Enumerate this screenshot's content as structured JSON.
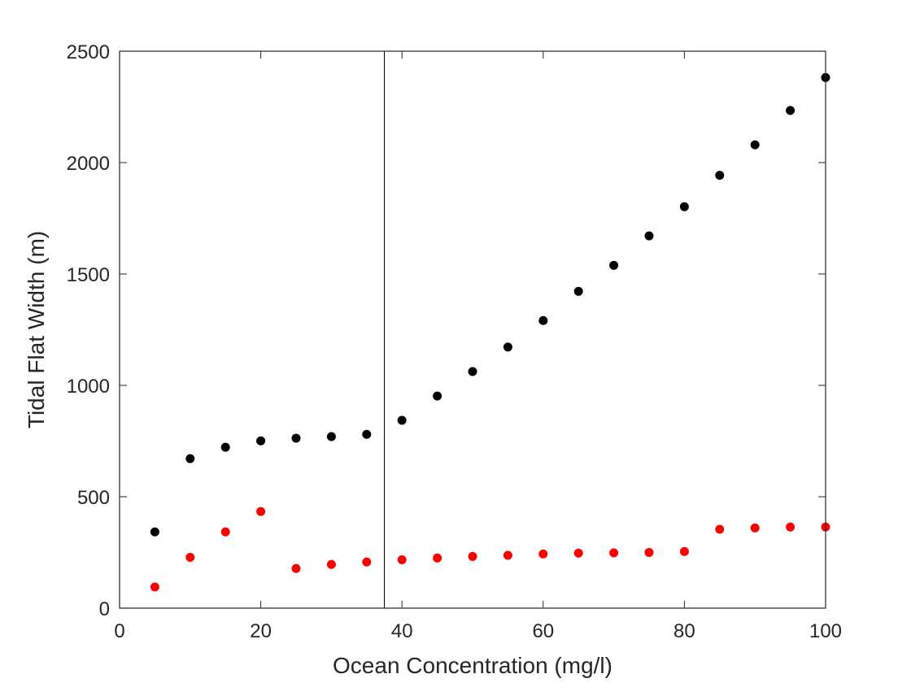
{
  "chart_data": {
    "type": "scatter",
    "title": "",
    "xlabel": "Ocean Concentration (mg/l)",
    "ylabel": "Tidal Flat Width (m)",
    "xlim": [
      0,
      100
    ],
    "ylim": [
      0,
      2500
    ],
    "xticks": [
      0,
      20,
      40,
      60,
      80,
      100
    ],
    "yticks": [
      0,
      500,
      1000,
      1500,
      2000,
      2500
    ],
    "grid": false,
    "legend": "none",
    "vertical_line_x": 37.5,
    "series": [
      {
        "color": "#000000",
        "x": [
          5,
          10,
          15,
          20,
          25,
          30,
          35,
          40,
          45,
          50,
          55,
          60,
          65,
          70,
          75,
          80,
          85,
          90,
          95,
          100
        ],
        "y": [
          342,
          671,
          722,
          751,
          763,
          770,
          780,
          843,
          952,
          1062,
          1172,
          1291,
          1422,
          1539,
          1671,
          1802,
          1943,
          2080,
          2234,
          2382
        ]
      },
      {
        "color": "#ff0000",
        "x": [
          5,
          10,
          15,
          20,
          25,
          30,
          35,
          40,
          45,
          50,
          55,
          60,
          65,
          70,
          75,
          80,
          85,
          90,
          95,
          100
        ],
        "y": [
          95,
          228,
          342,
          434,
          178,
          196,
          207,
          217,
          225,
          232,
          237,
          243,
          247,
          248,
          250,
          254,
          354,
          360,
          364,
          364
        ]
      }
    ]
  }
}
